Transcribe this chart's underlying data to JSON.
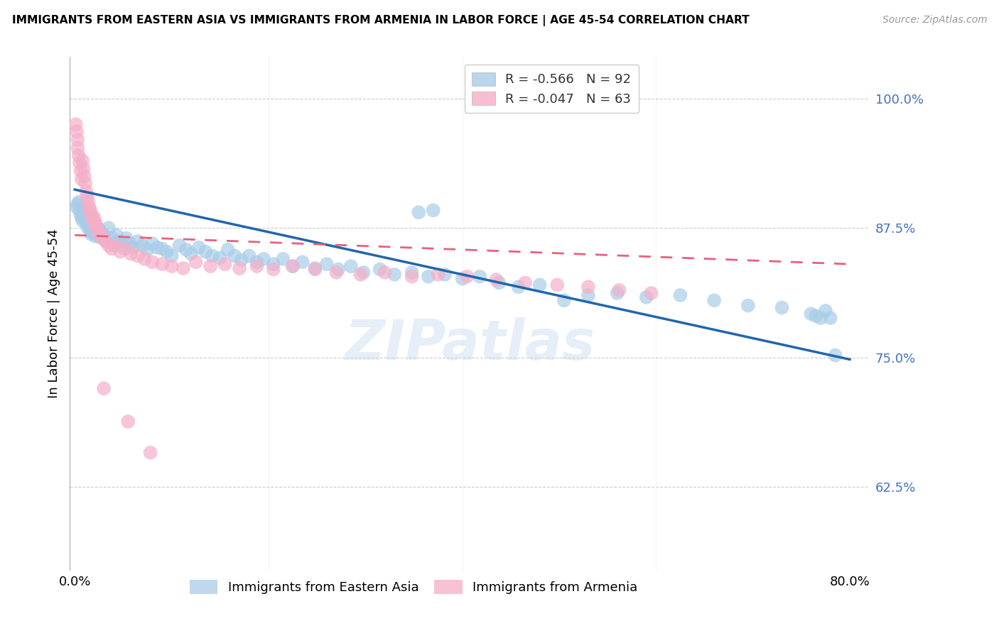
{
  "title": "IMMIGRANTS FROM EASTERN ASIA VS IMMIGRANTS FROM ARMENIA IN LABOR FORCE | AGE 45-54 CORRELATION CHART",
  "source": "Source: ZipAtlas.com",
  "ylabel": "In Labor Force | Age 45-54",
  "yticks": [
    0.625,
    0.75,
    0.875,
    1.0
  ],
  "ytick_labels": [
    "62.5%",
    "75.0%",
    "87.5%",
    "100.0%"
  ],
  "xlim": [
    -0.005,
    0.82
  ],
  "ylim": [
    0.545,
    1.04
  ],
  "blue_label": "Immigrants from Eastern Asia",
  "pink_label": "Immigrants from Armenia",
  "blue_R": -0.566,
  "blue_N": 92,
  "pink_R": -0.047,
  "pink_N": 63,
  "blue_color": "#a8cce8",
  "pink_color": "#f5aec8",
  "blue_line_color": "#2166ac",
  "pink_line_color": "#e8607a",
  "watermark": "ZIPatlas",
  "blue_x": [
    0.002,
    0.003,
    0.004,
    0.005,
    0.006,
    0.007,
    0.008,
    0.009,
    0.01,
    0.011,
    0.012,
    0.013,
    0.014,
    0.015,
    0.016,
    0.017,
    0.018,
    0.019,
    0.02,
    0.021,
    0.022,
    0.023,
    0.025,
    0.026,
    0.028,
    0.03,
    0.032,
    0.035,
    0.038,
    0.04,
    0.043,
    0.046,
    0.05,
    0.053,
    0.057,
    0.06,
    0.065,
    0.07,
    0.075,
    0.08,
    0.085,
    0.09,
    0.095,
    0.1,
    0.108,
    0.115,
    0.12,
    0.128,
    0.135,
    0.142,
    0.15,
    0.158,
    0.165,
    0.172,
    0.18,
    0.188,
    0.195,
    0.205,
    0.215,
    0.225,
    0.235,
    0.248,
    0.26,
    0.272,
    0.285,
    0.298,
    0.315,
    0.33,
    0.348,
    0.365,
    0.382,
    0.4,
    0.418,
    0.438,
    0.458,
    0.48,
    0.355,
    0.37,
    0.505,
    0.53,
    0.56,
    0.59,
    0.625,
    0.66,
    0.695,
    0.73,
    0.76,
    0.765,
    0.77,
    0.775,
    0.78,
    0.785
  ],
  "blue_y": [
    0.895,
    0.898,
    0.9,
    0.892,
    0.888,
    0.885,
    0.882,
    0.89,
    0.886,
    0.883,
    0.88,
    0.876,
    0.879,
    0.875,
    0.872,
    0.869,
    0.878,
    0.874,
    0.87,
    0.867,
    0.872,
    0.868,
    0.874,
    0.866,
    0.87,
    0.868,
    0.862,
    0.875,
    0.865,
    0.86,
    0.868,
    0.862,
    0.858,
    0.865,
    0.86,
    0.856,
    0.862,
    0.858,
    0.854,
    0.86,
    0.856,
    0.855,
    0.852,
    0.848,
    0.858,
    0.854,
    0.85,
    0.856,
    0.852,
    0.848,
    0.846,
    0.854,
    0.848,
    0.844,
    0.848,
    0.842,
    0.845,
    0.84,
    0.845,
    0.838,
    0.842,
    0.836,
    0.84,
    0.835,
    0.838,
    0.832,
    0.835,
    0.83,
    0.832,
    0.828,
    0.83,
    0.826,
    0.828,
    0.822,
    0.818,
    0.82,
    0.89,
    0.892,
    0.805,
    0.81,
    0.812,
    0.808,
    0.81,
    0.805,
    0.8,
    0.798,
    0.792,
    0.79,
    0.788,
    0.795,
    0.788,
    0.752
  ],
  "pink_x": [
    0.001,
    0.002,
    0.003,
    0.003,
    0.004,
    0.005,
    0.006,
    0.007,
    0.008,
    0.009,
    0.01,
    0.011,
    0.012,
    0.013,
    0.014,
    0.015,
    0.016,
    0.017,
    0.018,
    0.019,
    0.02,
    0.021,
    0.022,
    0.023,
    0.025,
    0.027,
    0.029,
    0.032,
    0.035,
    0.038,
    0.042,
    0.047,
    0.052,
    0.058,
    0.065,
    0.072,
    0.08,
    0.09,
    0.1,
    0.112,
    0.125,
    0.14,
    0.155,
    0.17,
    0.188,
    0.205,
    0.225,
    0.248,
    0.27,
    0.295,
    0.32,
    0.348,
    0.375,
    0.405,
    0.435,
    0.465,
    0.498,
    0.53,
    0.562,
    0.595,
    0.03,
    0.055,
    0.078
  ],
  "pink_y": [
    0.975,
    0.968,
    0.96,
    0.952,
    0.945,
    0.938,
    0.93,
    0.922,
    0.94,
    0.932,
    0.925,
    0.918,
    0.91,
    0.905,
    0.9,
    0.895,
    0.892,
    0.888,
    0.885,
    0.882,
    0.885,
    0.88,
    0.878,
    0.875,
    0.87,
    0.868,
    0.865,
    0.862,
    0.858,
    0.855,
    0.858,
    0.852,
    0.855,
    0.85,
    0.848,
    0.845,
    0.842,
    0.84,
    0.838,
    0.836,
    0.842,
    0.838,
    0.84,
    0.836,
    0.838,
    0.835,
    0.838,
    0.835,
    0.832,
    0.83,
    0.832,
    0.828,
    0.83,
    0.828,
    0.825,
    0.822,
    0.82,
    0.818,
    0.815,
    0.812,
    0.72,
    0.688,
    0.658
  ],
  "blue_trend_x0": 0.0,
  "blue_trend_x1": 0.8,
  "blue_trend_y0": 0.912,
  "blue_trend_y1": 0.748,
  "pink_trend_x0": 0.0,
  "pink_trend_x1": 0.8,
  "pink_trend_y0": 0.868,
  "pink_trend_y1": 0.84
}
